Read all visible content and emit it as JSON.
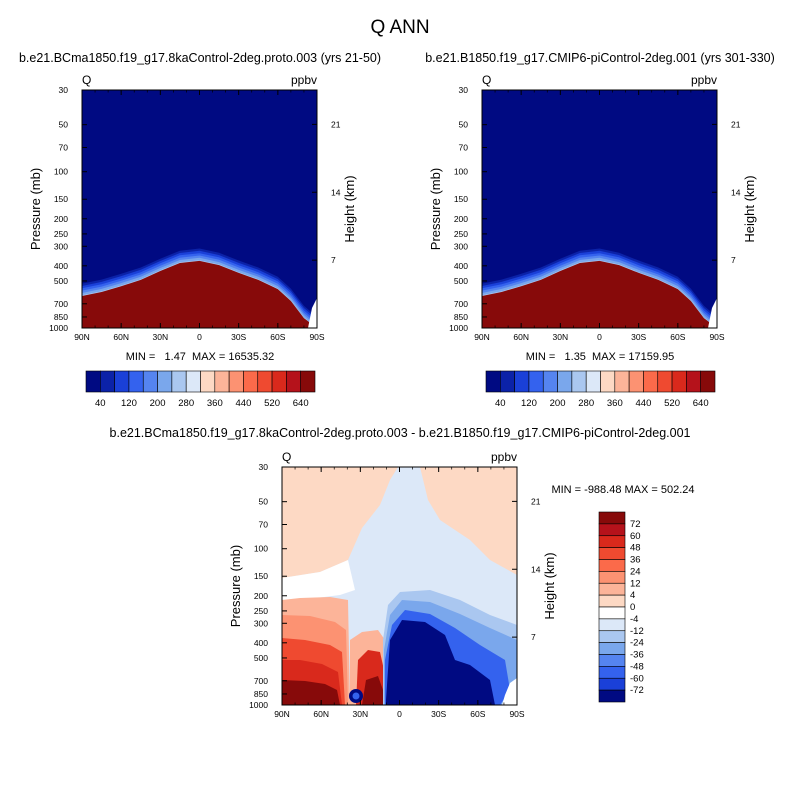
{
  "figure": {
    "title": "Q ANN",
    "colors": {
      "positive": [
        "#fdd9c4",
        "#fcb499",
        "#fc9272",
        "#fb6a4a",
        "#ef4a30",
        "#d9291c",
        "#b5121b",
        "#870a0a"
      ],
      "negative": [
        "#dce8f8",
        "#aac7f0",
        "#7aa7ec",
        "#5584f0",
        "#3462ee",
        "#1a40d8",
        "#0b22a8",
        "#000a82"
      ],
      "white": "#ffffff"
    }
  },
  "chart_data": [
    {
      "id": "left",
      "type": "heatmap",
      "subtitle": "b.e21.BCma1850.f19_g17.8kaControl-2deg.proto.003 (yrs 21-50)",
      "left_string": "Q",
      "right_string": "ppbv",
      "ylabel": "Pressure (mb)",
      "ylabel_right": "Height (km)",
      "x_ticks": [
        "90N",
        "60N",
        "30N",
        "0",
        "30S",
        "60S",
        "90S"
      ],
      "y_ticks": [
        "30",
        "50",
        "70",
        "100",
        "150",
        "200",
        "250",
        "300",
        "400",
        "500",
        "700",
        "850",
        "1000"
      ],
      "height_ticks": [
        "21",
        "14",
        "7"
      ],
      "stats": "MIN =   1.47  MAX = 16535.32",
      "colorbar_labels": [
        "40",
        "120",
        "200",
        "280",
        "360",
        "440",
        "520",
        "640"
      ],
      "colorbar_colors": [
        "#000a82",
        "#0b22a8",
        "#1a40d8",
        "#3462ee",
        "#5584f0",
        "#7aa7ec",
        "#aac7f0",
        "#dce8f8",
        "#fdd9c4",
        "#fcb499",
        "#fc9272",
        "#fb6a4a",
        "#ef4a30",
        "#d9291c",
        "#b5121b",
        "#870a0a"
      ],
      "transition_level_profile_mb": [
        {
          "lat": -90,
          "p": 850
        },
        {
          "lat": -80,
          "p": 720
        },
        {
          "lat": -70,
          "p": 560
        },
        {
          "lat": -60,
          "p": 470
        },
        {
          "lat": -45,
          "p": 410
        },
        {
          "lat": -30,
          "p": 370
        },
        {
          "lat": -15,
          "p": 330
        },
        {
          "lat": 0,
          "p": 310
        },
        {
          "lat": 15,
          "p": 320
        },
        {
          "lat": 30,
          "p": 360
        },
        {
          "lat": 45,
          "p": 410
        },
        {
          "lat": 60,
          "p": 450
        },
        {
          "lat": 75,
          "p": 490
        },
        {
          "lat": 90,
          "p": 520
        }
      ]
    },
    {
      "id": "right",
      "type": "heatmap",
      "subtitle": "b.e21.B1850.f19_g17.CMIP6-piControl-2deg.001 (yrs 301-330)",
      "left_string": "Q",
      "right_string": "ppbv",
      "ylabel": "Pressure (mb)",
      "ylabel_right": "Height (km)",
      "x_ticks": [
        "90N",
        "60N",
        "30N",
        "0",
        "30S",
        "60S",
        "90S"
      ],
      "y_ticks": [
        "30",
        "50",
        "70",
        "100",
        "150",
        "200",
        "250",
        "300",
        "400",
        "500",
        "700",
        "850",
        "1000"
      ],
      "height_ticks": [
        "21",
        "14",
        "7"
      ],
      "stats": "MIN =   1.35  MAX = 17159.95",
      "colorbar_labels": [
        "40",
        "120",
        "200",
        "280",
        "360",
        "440",
        "520",
        "640"
      ],
      "colorbar_colors": [
        "#000a82",
        "#0b22a8",
        "#1a40d8",
        "#3462ee",
        "#5584f0",
        "#7aa7ec",
        "#aac7f0",
        "#dce8f8",
        "#fdd9c4",
        "#fcb499",
        "#fc9272",
        "#fb6a4a",
        "#ef4a30",
        "#d9291c",
        "#b5121b",
        "#870a0a"
      ],
      "transition_level_profile_mb": [
        {
          "lat": -90,
          "p": 850
        },
        {
          "lat": -80,
          "p": 720
        },
        {
          "lat": -70,
          "p": 560
        },
        {
          "lat": -60,
          "p": 470
        },
        {
          "lat": -45,
          "p": 410
        },
        {
          "lat": -30,
          "p": 370
        },
        {
          "lat": -15,
          "p": 330
        },
        {
          "lat": 0,
          "p": 310
        },
        {
          "lat": 15,
          "p": 320
        },
        {
          "lat": 30,
          "p": 360
        },
        {
          "lat": 45,
          "p": 410
        },
        {
          "lat": 60,
          "p": 450
        },
        {
          "lat": 75,
          "p": 490
        },
        {
          "lat": 90,
          "p": 520
        }
      ]
    },
    {
      "id": "diff",
      "type": "heatmap",
      "subtitle": "b.e21.BCma1850.f19_g17.8kaControl-2deg.proto.003 - b.e21.B1850.f19_g17.CMIP6-piControl-2deg.001",
      "left_string": "Q",
      "right_string": "ppbv",
      "ylabel": "Pressure (mb)",
      "ylabel_right": "Height (km)",
      "x_ticks": [
        "90N",
        "60N",
        "30N",
        "0",
        "30S",
        "60S",
        "90S"
      ],
      "y_ticks": [
        "30",
        "50",
        "70",
        "100",
        "150",
        "200",
        "250",
        "300",
        "400",
        "500",
        "700",
        "850",
        "1000"
      ],
      "height_ticks": [
        "21",
        "14",
        "7"
      ],
      "stats": "MIN = -988.48  MAX = 502.24",
      "colorbar_labels": [
        "72",
        "60",
        "48",
        "36",
        "24",
        "12",
        "4",
        "0",
        "-4",
        "-12",
        "-24",
        "-36",
        "-48",
        "-60",
        "-72"
      ],
      "colorbar_colors": [
        "#870a0a",
        "#b5121b",
        "#d9291c",
        "#ef4a30",
        "#fb6a4a",
        "#fc9272",
        "#fcb499",
        "#fdd9c4",
        "#ffffff",
        "#dce8f8",
        "#aac7f0",
        "#7aa7ec",
        "#5584f0",
        "#3462ee",
        "#1a40d8",
        "#000a82"
      ]
    }
  ]
}
